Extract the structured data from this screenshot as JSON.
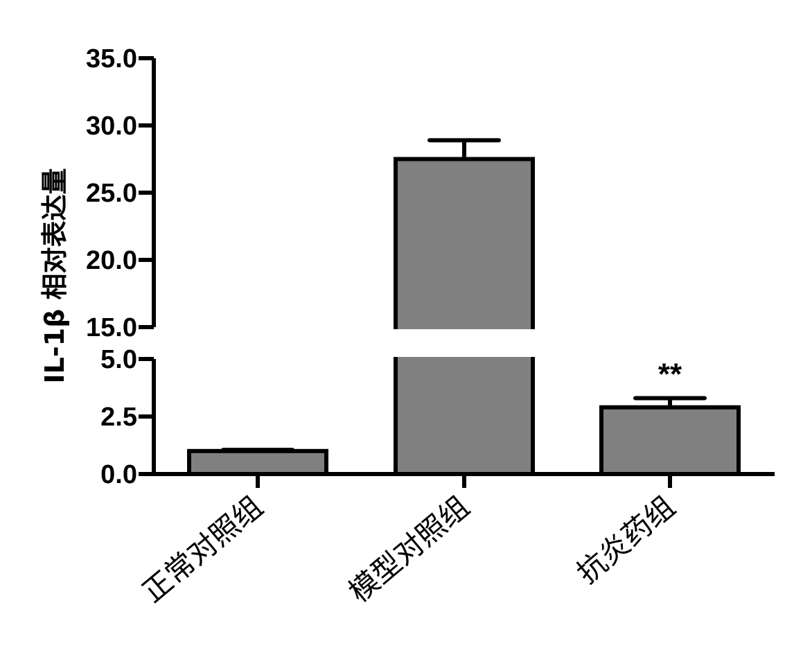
{
  "chart_data": {
    "type": "bar",
    "title": "",
    "xlabel": "",
    "ylabel": "IL-1β 相对表达量",
    "categories": [
      "正常对照组",
      "模型对照组",
      "抗炎药组"
    ],
    "values": [
      1.0,
      27.5,
      2.9
    ],
    "errors": [
      0.05,
      1.4,
      0.4
    ],
    "annotations": [
      "",
      "",
      "**"
    ],
    "bar_color": "#808080",
    "axis_break": true,
    "ylim_lower": [
      0,
      5
    ],
    "ylim_upper": [
      15,
      35
    ],
    "yticks_lower": [
      "0.0",
      "2.5",
      "5.0"
    ],
    "yticks_upper": [
      "15.0",
      "20.0",
      "25.0",
      "30.0",
      "35.0"
    ],
    "grid": false,
    "legend": "none"
  }
}
